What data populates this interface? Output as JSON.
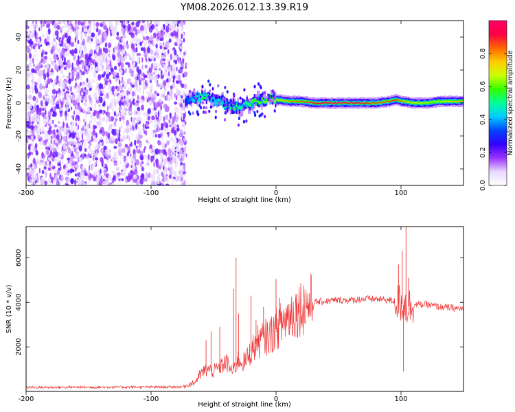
{
  "title": "YM08.2026.012.13.39.R19",
  "chart_data": [
    {
      "type": "heatmap",
      "name": "spectrogram",
      "xlabel": "Height of straight line (km)",
      "ylabel": "Frequency (Hz)",
      "xlim": [
        -200,
        150
      ],
      "ylim": [
        -50,
        50
      ],
      "xticks": [
        "-200",
        "-100",
        "0",
        "100"
      ],
      "xtick_values": [
        -200,
        -100,
        0,
        100
      ],
      "yticks": [
        "-40",
        "-20",
        "0",
        "20",
        "40"
      ],
      "ytick_values": [
        -40,
        -20,
        0,
        20,
        40
      ],
      "noise_region_x": [
        -200,
        -72
      ],
      "signal_trace": {
        "x": [
          -73,
          -65,
          -58,
          -52,
          -45,
          -40,
          -35,
          -30,
          -25,
          -20,
          -15,
          -10,
          -5,
          0,
          10,
          20,
          30,
          40,
          50,
          60,
          70,
          80,
          90,
          95,
          100,
          110,
          120,
          130,
          140,
          150
        ],
        "f": [
          2,
          3,
          4,
          2,
          1,
          -1,
          -2,
          -3,
          -1,
          0,
          1,
          2,
          3,
          2,
          1,
          1,
          0,
          0,
          0,
          0,
          0,
          0,
          1,
          2,
          1,
          0,
          0,
          1,
          1,
          1
        ],
        "amp": [
          0.3,
          0.45,
          0.55,
          0.4,
          0.5,
          0.45,
          0.55,
          0.5,
          0.5,
          0.55,
          0.6,
          0.65,
          0.7,
          0.7,
          0.8,
          0.85,
          0.9,
          0.95,
          1.0,
          0.95,
          0.9,
          0.85,
          0.85,
          0.9,
          0.8,
          0.7,
          0.65,
          0.65,
          0.75,
          0.8
        ]
      },
      "colorbar": {
        "label": "Normalized spectral amplitude",
        "range": [
          0,
          1
        ],
        "ticks": [
          "0.0",
          "0.2",
          "0.4",
          "0.6",
          "0.8"
        ],
        "tick_values": [
          0,
          0.2,
          0.4,
          0.6,
          0.8
        ],
        "colors": [
          "#ffffff",
          "#e8d8ff",
          "#9933ff",
          "#3300ff",
          "#0044ff",
          "#00ccff",
          "#00ff99",
          "#33ff00",
          "#ccff00",
          "#ffcc00",
          "#ff6600",
          "#ff0044",
          "#ff0066"
        ]
      }
    },
    {
      "type": "line",
      "name": "snr",
      "xlabel": "Height of straight line (km)",
      "ylabel": "SNR (10 * v/v)",
      "xlim": [
        -200,
        150
      ],
      "ylim": [
        0,
        7400
      ],
      "xticks": [
        "-200",
        "-100",
        "0",
        "100"
      ],
      "xtick_values": [
        -200,
        -100,
        0,
        100
      ],
      "yticks": [
        "2000",
        "4000",
        "6000"
      ],
      "ytick_values": [
        2000,
        4000,
        6000
      ],
      "color": "#ee3333",
      "baseline": {
        "x": [
          -200,
          -75,
          -65,
          -60,
          -55,
          -50,
          -45,
          -40,
          -35,
          -30,
          -25,
          -20,
          -15,
          -10,
          -5,
          0,
          5,
          10,
          15,
          20,
          25,
          30,
          40,
          50,
          60,
          70,
          80,
          90,
          95,
          100,
          105,
          110,
          120,
          130,
          140,
          150
        ],
        "y": [
          180,
          200,
          400,
          800,
          1000,
          900,
          1100,
          1300,
          900,
          1400,
          1300,
          1800,
          2200,
          2400,
          2500,
          2800,
          3100,
          3400,
          3600,
          3800,
          3900,
          4000,
          4050,
          4100,
          4100,
          4150,
          4150,
          4100,
          4050,
          3950,
          3800,
          3900,
          3900,
          3800,
          3750,
          3700
        ]
      },
      "spikes": [
        {
          "x": -56,
          "y": 2300
        },
        {
          "x": -52,
          "y": 2700
        },
        {
          "x": -45,
          "y": 2900
        },
        {
          "x": -32,
          "y": 6000
        },
        {
          "x": -34,
          "y": 4600
        },
        {
          "x": -30,
          "y": 3500
        },
        {
          "x": -20,
          "y": 4300
        },
        {
          "x": -16,
          "y": 3200
        },
        {
          "x": -10,
          "y": 3800
        },
        {
          "x": 0,
          "y": 5050
        },
        {
          "x": 3,
          "y": 4200
        },
        {
          "x": 98,
          "y": 5700
        },
        {
          "x": 101,
          "y": 6300
        },
        {
          "x": 104,
          "y": 7400
        },
        {
          "x": 102,
          "y": 900
        },
        {
          "x": 106,
          "y": 5100
        }
      ]
    }
  ]
}
